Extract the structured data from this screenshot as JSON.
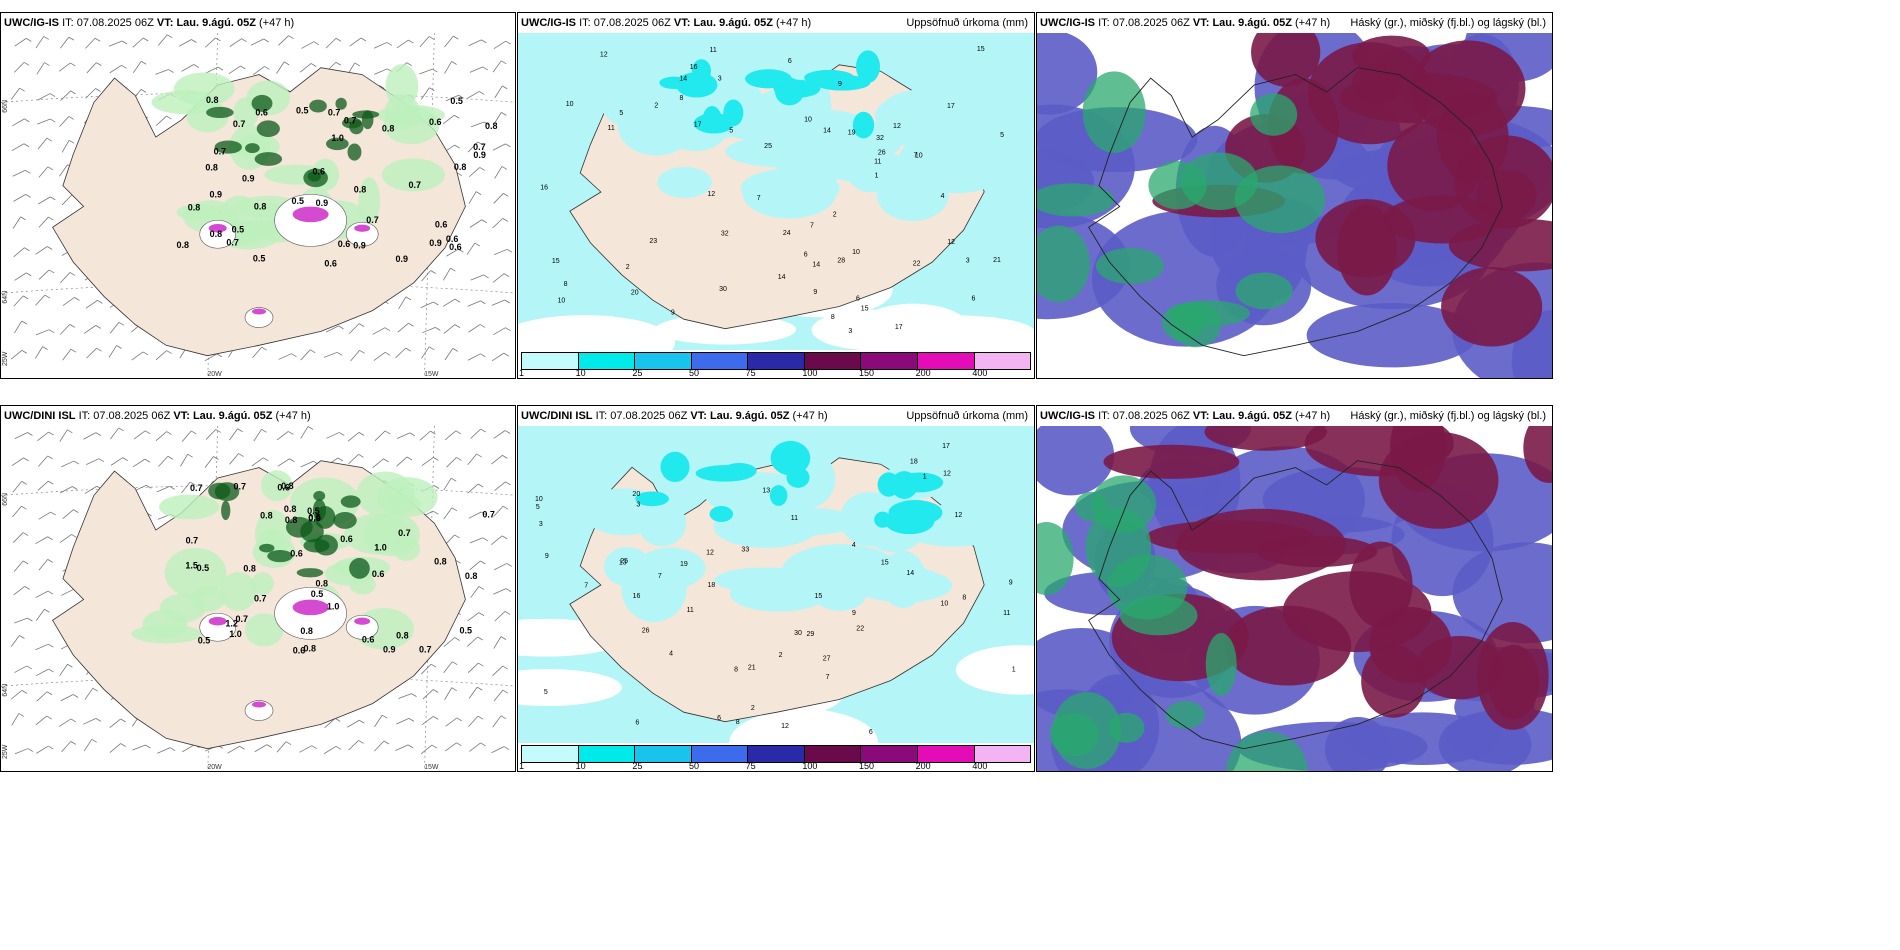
{
  "panels": [
    {
      "id": "top-left",
      "model": "UWC/IG-IS",
      "it_label": "IT:",
      "it_value": "07.08.2025 06Z",
      "vt_label": "VT:",
      "vt_value": "Lau. 9.ágú. 05Z",
      "lead": "(+47 h)",
      "right_title": "",
      "axis_labels": {
        "lat_top": "66N",
        "lat_mid": "64N",
        "lon_left": "25W",
        "lon_mid": "20W",
        "lon_right": "15W"
      },
      "values": [
        "0.8",
        "0.8",
        "0.6",
        "0.9",
        "0.7",
        "0.5",
        "0.5",
        "0.6",
        "0.7",
        "0.8",
        "0.9",
        "1.0",
        "0.9",
        "0.8",
        "0.7",
        "0.6",
        "0.5",
        "0.7",
        "0.6",
        "0.8",
        "0.6",
        "0.7",
        "0.9",
        "0.8",
        "0.8",
        "0.6",
        "0.7",
        "0.9",
        "0.8",
        "0.5",
        "0.9",
        "0.6",
        "0.8",
        "0.7",
        "0.8",
        "0.6",
        "0.5",
        "0.9",
        "0.7"
      ]
    },
    {
      "id": "top-middle",
      "model": "UWC/IG-IS",
      "it_label": "IT:",
      "it_value": "07.08.2025 06Z",
      "vt_label": "VT:",
      "vt_value": "Lau. 9.ágú. 05Z",
      "lead": "(+47 h)",
      "right_title": "Uppsöfnuð úrkoma (mm)",
      "values": [
        "10",
        "10",
        "6",
        "8",
        "3",
        "12",
        "32",
        "25",
        "15",
        "11",
        "15",
        "21",
        "17",
        "14",
        "30",
        "28",
        "32",
        "26",
        "14",
        "20",
        "23",
        "24",
        "12",
        "16",
        "22",
        "17",
        "9",
        "11",
        "10",
        "7",
        "8",
        "6",
        "5",
        "12",
        "15",
        "10",
        "17",
        "16",
        "14",
        "9",
        "7",
        "5",
        "4",
        "3",
        "2",
        "1",
        "8",
        "3",
        "10",
        "11",
        "19",
        "12",
        "7",
        "6",
        "9",
        "14",
        "2",
        "5",
        "6",
        "2"
      ]
    },
    {
      "id": "top-right",
      "model": "UWC/IG-IS",
      "it_label": "IT:",
      "it_value": "07.08.2025 06Z",
      "vt_label": "VT:",
      "vt_value": "Lau. 9.ágú. 05Z",
      "lead": "(+47 h)",
      "right_title": "Háský (gr.), miðský (fj.bl.) og lágský (bl.)"
    },
    {
      "id": "bottom-left",
      "model": "UWC/DINI ISL",
      "it_label": "IT:",
      "it_value": "07.08.2025 06Z",
      "vt_label": "VT:",
      "vt_value": "Lau. 9.ágú. 05Z",
      "lead": "(+47 h)",
      "right_title": "",
      "axis_labels": {
        "lat_top": "66N",
        "lat_mid": "64N",
        "lon_left": "25W",
        "lon_mid": "20W",
        "lon_right": "15W"
      },
      "values": [
        "0.7",
        "1.0",
        "0.8",
        "0.9",
        "1.0",
        "0.8",
        "0.7",
        "0.8",
        "0.6",
        "0.5",
        "0.7",
        "0.8",
        "0.7",
        "0.6",
        "0.5",
        "0.8",
        "1.2",
        "0.8",
        "0.7",
        "0.8",
        "1.0",
        "0.6",
        "1.5",
        "0.8",
        "0.5",
        "0.7",
        "0.8",
        "0.5",
        "0.6",
        "0.9",
        "0.7",
        "0.6",
        "0.8",
        "0.5",
        "0.6",
        "0.8",
        "0.5",
        "0.7"
      ]
    },
    {
      "id": "bottom-middle",
      "model": "UWC/DINI ISL",
      "it_label": "IT:",
      "it_value": "07.08.2025 06Z",
      "vt_label": "VT:",
      "vt_value": "Lau. 9.ágú. 05Z",
      "lead": "(+47 h)",
      "right_title": "Uppsöfnuð úrkoma (mm)",
      "values": [
        "11",
        "7",
        "9",
        "8",
        "6",
        "12",
        "33",
        "27",
        "30",
        "19",
        "15",
        "21",
        "17",
        "22",
        "29",
        "18",
        "25",
        "26",
        "20",
        "13",
        "18",
        "15",
        "12",
        "11",
        "16",
        "6",
        "10",
        "5",
        "4",
        "3",
        "2",
        "1",
        "8",
        "9",
        "7",
        "12",
        "14",
        "10",
        "13",
        "6",
        "5",
        "3",
        "4",
        "2",
        "1",
        "8",
        "9",
        "7",
        "12",
        "11"
      ]
    },
    {
      "id": "bottom-right",
      "model": "UWC/IG-IS",
      "it_label": "IT:",
      "it_value": "07.08.2025 06Z",
      "vt_label": "VT:",
      "vt_value": "Lau. 9.ágú. 05Z",
      "lead": "(+47 h)",
      "right_title": "Háský (gr.), miðský (fj.bl.) og lágský (bl.)"
    }
  ],
  "colorbar": {
    "labels": [
      "1",
      "10",
      "25",
      "50",
      "75",
      "100",
      "150",
      "200",
      "400"
    ],
    "colors": [
      "#c4fbfb",
      "#00eaea",
      "#18c4ec",
      "#3c6cec",
      "#2a2aa8",
      "#6a0a4a",
      "#8a0a7a",
      "#e40cb6",
      "#f2b4f2"
    ]
  },
  "colors": {
    "land": "#f5e6da",
    "precip_light": "#b4f5f7",
    "precip_mid": "#21e9ee",
    "cloud_high": "#2aa86e",
    "cloud_mid": "#5c5cc8",
    "cloud_low": "#7a1a48",
    "green_light": "#bdf0bd",
    "green_dark": "#0c5a1a",
    "pink": "#d44ad0"
  }
}
